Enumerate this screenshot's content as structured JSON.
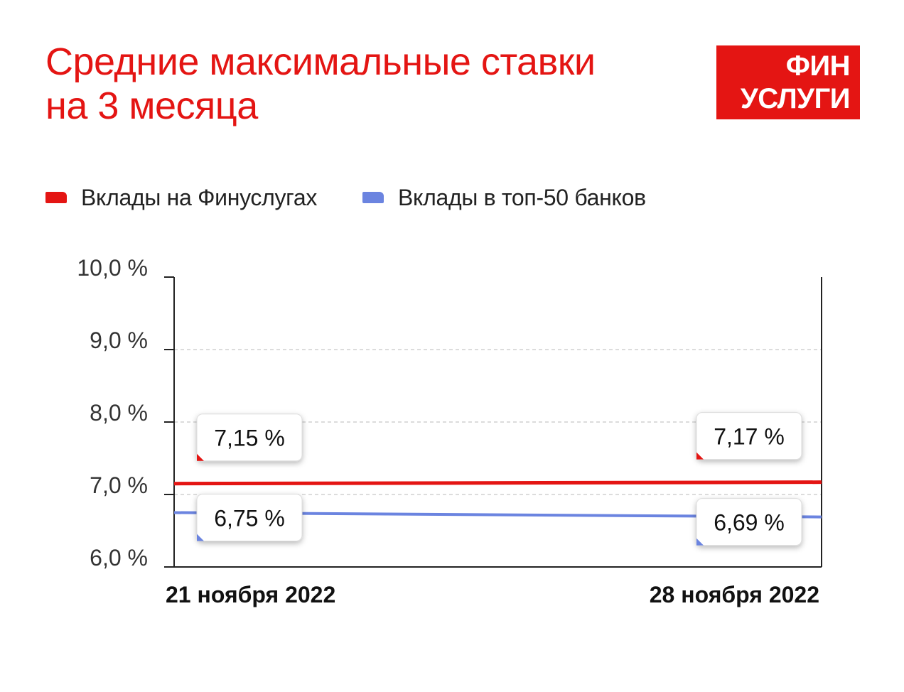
{
  "title": "Средние максимальные ставки\nна 3 месяца",
  "logo": {
    "line1": "ФИН",
    "line2": "УСЛУГИ"
  },
  "colors": {
    "brand_red": "#e41513",
    "series_blue": "#6b84e0"
  },
  "chart_data": {
    "type": "line",
    "x": [
      "21 ноября 2022",
      "28 ноября 2022"
    ],
    "series": [
      {
        "name": "Вклады на Финуслугах",
        "color": "#e41513",
        "values": [
          7.15,
          7.17
        ],
        "labels": [
          "7,15 %",
          "7,17 %"
        ]
      },
      {
        "name": "Вклады в топ-50 банков",
        "color": "#6b84e0",
        "values": [
          6.75,
          6.69
        ],
        "labels": [
          "6,75 %",
          "6,69 %"
        ]
      }
    ],
    "ylim": [
      6.0,
      10.0
    ],
    "yticks": [
      10.0,
      9.0,
      8.0,
      7.0,
      6.0
    ],
    "ytick_labels": [
      "10,0 %",
      "9,0 %",
      "8,0 %",
      "7,0 %",
      "6,0 %"
    ],
    "grid": true,
    "legend": "top-left"
  }
}
